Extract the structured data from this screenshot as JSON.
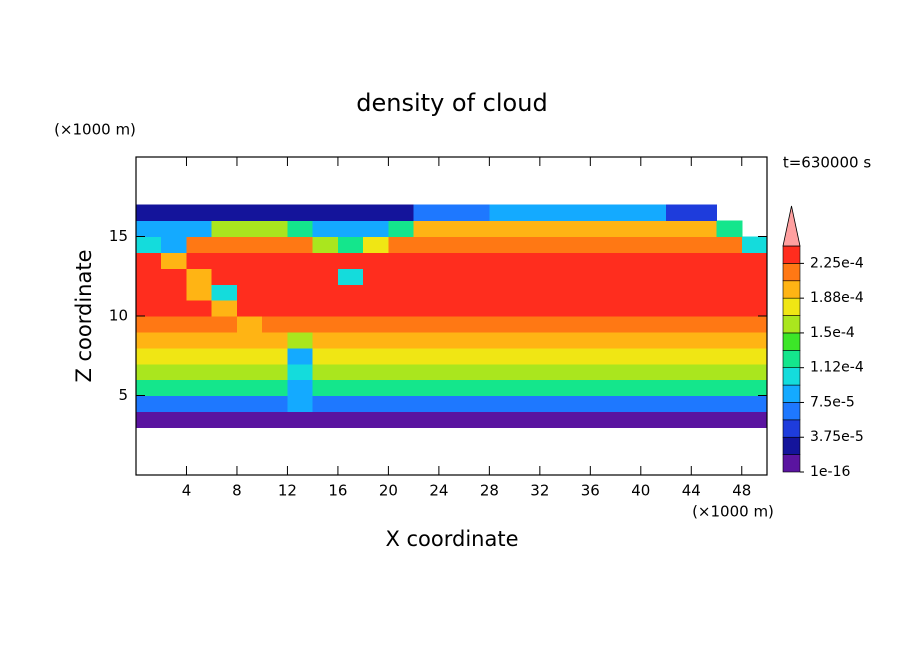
{
  "chart_data": {
    "type": "contour",
    "title": "density of cloud",
    "x_label": "X coordinate",
    "y_label": "Z coordinate",
    "x_unit": "(×1000 m)",
    "y_unit": "(×1000 m)",
    "annotation": "t=630000 s",
    "xlim": [
      0,
      50
    ],
    "ylim": [
      0,
      20
    ],
    "xticks": [
      4,
      8,
      12,
      16,
      20,
      24,
      28,
      32,
      36,
      40,
      44,
      48
    ],
    "yticks": [
      5,
      10,
      15
    ],
    "x": [
      1,
      3,
      5,
      7,
      9,
      11,
      13,
      15,
      17,
      19,
      21,
      23,
      25,
      27,
      29,
      31,
      33,
      35,
      37,
      39,
      41,
      43,
      45,
      47,
      49
    ],
    "y": [
      3.5,
      4.5,
      5.5,
      6.5,
      7.5,
      8.5,
      9.5,
      10.5,
      11.5,
      12.5,
      13.5,
      14.5,
      15.5,
      16.5
    ],
    "z": [
      [
        1e-05,
        1e-05,
        1e-05,
        1e-05,
        1e-05,
        1e-05,
        1e-05,
        1e-05,
        1e-05,
        1e-05,
        1e-05,
        1e-05,
        1e-05,
        1e-05,
        1e-05,
        1e-05,
        1e-05,
        1e-05,
        1e-05,
        1e-05,
        1e-05,
        1e-05,
        1e-05,
        1e-05,
        1e-05
      ],
      [
        7e-05,
        7e-05,
        7e-05,
        7e-05,
        7e-05,
        7e-05,
        9e-05,
        7e-05,
        7e-05,
        7e-05,
        7e-05,
        7e-05,
        7e-05,
        7e-05,
        7e-05,
        7e-05,
        7e-05,
        7e-05,
        7e-05,
        7e-05,
        7e-05,
        7e-05,
        7e-05,
        7e-05,
        7e-05
      ],
      [
        0.00013,
        0.00013,
        0.00013,
        0.00013,
        0.00013,
        0.00013,
        9e-05,
        0.00013,
        0.00013,
        0.00013,
        0.00013,
        0.00013,
        0.00013,
        0.00013,
        0.00013,
        0.00013,
        0.00013,
        0.00013,
        0.00013,
        0.00013,
        0.00013,
        0.00013,
        0.00013,
        0.00013,
        0.00013
      ],
      [
        0.00016,
        0.00016,
        0.00016,
        0.00016,
        0.00016,
        0.00016,
        0.0001,
        0.00016,
        0.00016,
        0.00016,
        0.00016,
        0.00016,
        0.00016,
        0.00016,
        0.00016,
        0.00016,
        0.00016,
        0.00016,
        0.00016,
        0.00016,
        0.00016,
        0.00016,
        0.00016,
        0.00016,
        0.00016
      ],
      [
        0.00018,
        0.00018,
        0.00018,
        0.00018,
        0.00018,
        0.00018,
        9e-05,
        0.00018,
        0.00018,
        0.00018,
        0.00018,
        0.00018,
        0.00018,
        0.00018,
        0.00018,
        0.00018,
        0.00018,
        0.00018,
        0.00018,
        0.00018,
        0.00018,
        0.00018,
        0.00018,
        0.00018,
        0.00018
      ],
      [
        0.0002,
        0.0002,
        0.0002,
        0.0002,
        0.0002,
        0.0002,
        0.00015,
        0.0002,
        0.0002,
        0.0002,
        0.0002,
        0.0002,
        0.0002,
        0.0002,
        0.0002,
        0.0002,
        0.0002,
        0.0002,
        0.0002,
        0.0002,
        0.0002,
        0.0002,
        0.0002,
        0.0002,
        0.0002
      ],
      [
        0.00022,
        0.00022,
        0.00022,
        0.00022,
        0.0002,
        0.00022,
        0.00022,
        0.00022,
        0.00022,
        0.00022,
        0.00022,
        0.00022,
        0.00022,
        0.00022,
        0.00022,
        0.00022,
        0.00022,
        0.00022,
        0.00022,
        0.00022,
        0.00022,
        0.00022,
        0.00022,
        0.00022,
        0.00022
      ],
      [
        0.00023,
        0.00023,
        0.00023,
        0.00019,
        0.00023,
        0.00023,
        0.00023,
        0.00023,
        0.00023,
        0.00023,
        0.00023,
        0.00023,
        0.00023,
        0.00023,
        0.00023,
        0.00023,
        0.00023,
        0.00023,
        0.00023,
        0.00023,
        0.00023,
        0.00023,
        0.00023,
        0.00023,
        0.00023
      ],
      [
        0.00023,
        0.00023,
        0.0002,
        0.00011,
        0.00023,
        0.00023,
        0.00023,
        0.00023,
        0.00023,
        0.00023,
        0.00023,
        0.00023,
        0.00023,
        0.00023,
        0.00023,
        0.00023,
        0.00023,
        0.00023,
        0.00023,
        0.00023,
        0.00023,
        0.00023,
        0.00023,
        0.00023,
        0.00023
      ],
      [
        0.00023,
        0.00023,
        0.0002,
        0.00023,
        0.00023,
        0.00023,
        0.00023,
        0.00023,
        0.0001,
        0.00023,
        0.00023,
        0.00023,
        0.00023,
        0.00023,
        0.00023,
        0.00023,
        0.00023,
        0.00023,
        0.00023,
        0.00023,
        0.00023,
        0.00023,
        0.00023,
        0.00023,
        0.00023
      ],
      [
        0.000225,
        0.00019,
        0.000225,
        0.000225,
        0.000225,
        0.000225,
        0.000225,
        0.000225,
        0.000225,
        0.000225,
        0.000225,
        0.000225,
        0.000225,
        0.000225,
        0.000225,
        0.000225,
        0.000225,
        0.000225,
        0.000225,
        0.000225,
        0.000225,
        0.000225,
        0.000225,
        0.000225,
        0.000225
      ],
      [
        0.00011,
        9e-05,
        0.00022,
        0.00022,
        0.00022,
        0.00022,
        0.00022,
        0.00015,
        0.00012,
        0.00018,
        0.00022,
        0.00022,
        0.00022,
        0.00022,
        0.00022,
        0.00022,
        0.00022,
        0.00022,
        0.00022,
        0.00022,
        0.00022,
        0.00022,
        0.00022,
        0.00022,
        0.0001
      ],
      [
        8e-05,
        8e-05,
        8e-05,
        0.00015,
        0.00015,
        0.00015,
        0.00012,
        8e-05,
        8e-05,
        8e-05,
        0.00012,
        0.0002,
        0.0002,
        0.0002,
        0.0002,
        0.0002,
        0.0002,
        0.0002,
        0.0002,
        0.0002,
        0.0002,
        0.0002,
        0.0002,
        0.00012,
        null
      ],
      [
        2e-05,
        2e-05,
        2e-05,
        2e-05,
        2e-05,
        2e-05,
        2e-05,
        2e-05,
        2e-05,
        2e-05,
        2e-05,
        6e-05,
        6e-05,
        6e-05,
        8e-05,
        8e-05,
        8e-05,
        8e-05,
        8e-05,
        8e-05,
        8e-05,
        5e-05,
        5e-05,
        null,
        null
      ]
    ],
    "colorbar": {
      "levels": [
        1e-16,
        1.875e-05,
        3.75e-05,
        5.625e-05,
        7.5e-05,
        9.375e-05,
        0.0001125,
        0.00013125,
        0.00015,
        0.00016875,
        0.0001875,
        0.00020625,
        0.000225,
        0.00024375
      ],
      "colors": [
        "#5a14a0",
        "#14149b",
        "#1e3cdc",
        "#1e78ff",
        "#14aaff",
        "#14dcdc",
        "#14e68c",
        "#3ce628",
        "#aae61e",
        "#f0e614",
        "#ffb414",
        "#ff7814",
        "#ff2d1e"
      ],
      "extend_color": "#ffa0a0",
      "ticks": [
        {
          "value": 1e-16,
          "label": "1e-16"
        },
        {
          "value": 3.75e-05,
          "label": "3.75e-5"
        },
        {
          "value": 7.5e-05,
          "label": "7.5e-5"
        },
        {
          "value": 0.0001125,
          "label": "1.12e-4"
        },
        {
          "value": 0.00015,
          "label": "1.5e-4"
        },
        {
          "value": 0.0001875,
          "label": "1.88e-4"
        },
        {
          "value": 0.000225,
          "label": "2.25e-4"
        }
      ]
    }
  }
}
